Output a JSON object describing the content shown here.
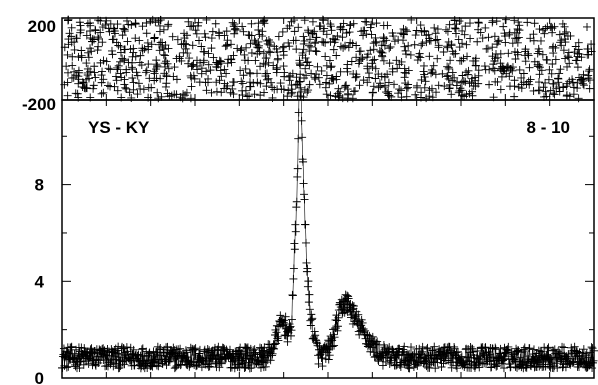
{
  "chart_data": [
    {
      "type": "scatter",
      "panel": "phase",
      "marker": "plus",
      "ylim": [
        -200,
        200
      ],
      "y_tick_labels": [
        "200",
        "-200"
      ],
      "x_range": [
        0,
        1
      ],
      "description_points": "phase noise uniformly distributed between -200 and 200",
      "n_points": 1100,
      "color": "#000000"
    },
    {
      "type": "line",
      "panel": "power",
      "marker": "plus",
      "ylim": [
        0,
        11.5
      ],
      "y_tick_labels": [
        "0",
        "4",
        "8"
      ],
      "left_label": "YS - KY",
      "right_label": "8 - 10",
      "baseline": 0.85,
      "noise_amplitude": 0.45,
      "peaks": [
        {
          "x": 0.415,
          "height": 1.4,
          "width": 0.012
        },
        {
          "x": 0.438,
          "height": 3.8,
          "width": 0.004
        },
        {
          "x": 0.447,
          "height": 9.8,
          "width": 0.004
        },
        {
          "x": 0.455,
          "height": 4.5,
          "width": 0.005
        },
        {
          "x": 0.465,
          "height": 1.6,
          "width": 0.008
        },
        {
          "x": 0.53,
          "height": 1.9,
          "width": 0.015
        },
        {
          "x": 0.56,
          "height": 1.0,
          "width": 0.02
        }
      ],
      "n_points": 1100,
      "color": "#000000"
    }
  ]
}
